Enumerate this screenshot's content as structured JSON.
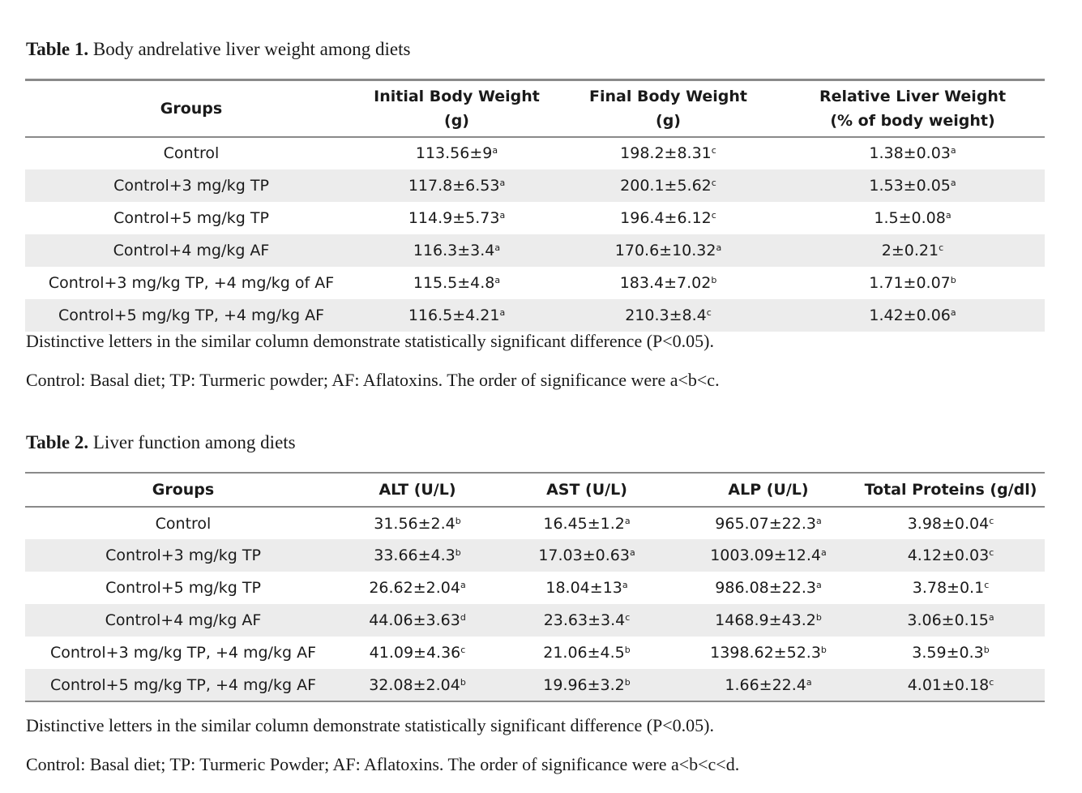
{
  "table1": {
    "caption_label": "Table 1.",
    "caption_text": " Body andrelative liver weight among diets",
    "headers": [
      [
        "Groups"
      ],
      [
        "Initial Body Weight",
        "(g)"
      ],
      [
        "Final Body Weight",
        "(g)"
      ],
      [
        "Relative Liver Weight",
        "(% of body weight)"
      ]
    ],
    "rows": [
      [
        {
          "v": "Control"
        },
        {
          "v": "113.56±9",
          "s": "a"
        },
        {
          "v": "198.2±8.31",
          "s": "c"
        },
        {
          "v": "1.38±0.03",
          "s": "a"
        }
      ],
      [
        {
          "v": "Control+3 mg/kg TP"
        },
        {
          "v": "117.8±6.53",
          "s": "a"
        },
        {
          "v": "200.1±5.62",
          "s": "c"
        },
        {
          "v": "1.53±0.05",
          "s": "a"
        }
      ],
      [
        {
          "v": "Control+5 mg/kg TP"
        },
        {
          "v": "114.9±5.73",
          "s": "a"
        },
        {
          "v": "196.4±6.12",
          "s": "c"
        },
        {
          "v": "1.5±0.08",
          "s": "a"
        }
      ],
      [
        {
          "v": "Control+4 mg/kg AF"
        },
        {
          "v": "116.3±3.4",
          "s": "a"
        },
        {
          "v": "170.6±10.32",
          "s": "a"
        },
        {
          "v": "2±0.21",
          "s": "c"
        }
      ],
      [
        {
          "v": "Control+3 mg/kg TP, +4 mg/kg of AF"
        },
        {
          "v": "115.5±4.8",
          "s": "a"
        },
        {
          "v": "183.4±7.02",
          "s": "b"
        },
        {
          "v": "1.71±0.07",
          "s": "b"
        }
      ],
      [
        {
          "v": "Control+5 mg/kg TP, +4 mg/kg AF"
        },
        {
          "v": "116.5±4.21",
          "s": "a"
        },
        {
          "v": "210.3±8.4",
          "s": "c"
        },
        {
          "v": "1.42±0.06",
          "s": "a"
        }
      ]
    ],
    "notes": [
      "Distinctive letters in the similar column demonstrate statistically significant difference (P<0.05).",
      "Control: Basal diet; TP: Turmeric powder; AF:  Aflatoxins. The order of significance were a<b<c."
    ]
  },
  "table2": {
    "caption_label": "Table 2.",
    "caption_text": " Liver function among diets",
    "headers": [
      "Groups",
      "ALT (U/L)",
      "AST (U/L)",
      "ALP (U/L)",
      "Total Proteins (g/dl)"
    ],
    "rows": [
      [
        {
          "v": "Control"
        },
        {
          "v": "31.56±2.4",
          "s": "b"
        },
        {
          "v": "16.45±1.2",
          "s": "a"
        },
        {
          "v": "965.07±22.3",
          "s": "a"
        },
        {
          "v": "3.98±0.04",
          "s": "c"
        }
      ],
      [
        {
          "v": "Control+3 mg/kg TP"
        },
        {
          "v": "33.66±4.3",
          "s": "b"
        },
        {
          "v": "17.03±0.63",
          "s": "a"
        },
        {
          "v": "1003.09±12.4",
          "s": "a"
        },
        {
          "v": "4.12±0.03",
          "s": "c"
        }
      ],
      [
        {
          "v": "Control+5 mg/kg TP"
        },
        {
          "v": "26.62±2.04",
          "s": "a"
        },
        {
          "v": "18.04±13",
          "s": "a"
        },
        {
          "v": "986.08±22.3",
          "s": "a"
        },
        {
          "v": "3.78±0.1",
          "s": "c"
        }
      ],
      [
        {
          "v": "Control+4 mg/kg AF"
        },
        {
          "v": "44.06±3.63",
          "s": "d"
        },
        {
          "v": "23.63±3.4",
          "s": "c"
        },
        {
          "v": "1468.9±43.2",
          "s": "b"
        },
        {
          "v": "3.06±0.15",
          "s": "a"
        }
      ],
      [
        {
          "v": "Control+3 mg/kg TP, +4 mg/kg AF"
        },
        {
          "v": "41.09±4.36",
          "s": "c"
        },
        {
          "v": "21.06±4.5",
          "s": "b"
        },
        {
          "v": "1398.62±52.3",
          "s": "b"
        },
        {
          "v": "3.59±0.3",
          "s": "b"
        }
      ],
      [
        {
          "v": "Control+5 mg/kg TP, +4 mg/kg AF"
        },
        {
          "v": "32.08±2.04",
          "s": "b"
        },
        {
          "v": "19.96±3.2",
          "s": "b"
        },
        {
          "v": "1.66±22.4",
          "s": "a"
        },
        {
          "v": "4.01±0.18",
          "s": "c"
        }
      ]
    ],
    "notes": [
      "Distinctive letters in the similar column demonstrate statistically significant difference (P<0.05).",
      "Control: Basal diet; TP: Turmeric Powder; AF:  Aflatoxins. The order of significance were a<b<c<d."
    ]
  }
}
